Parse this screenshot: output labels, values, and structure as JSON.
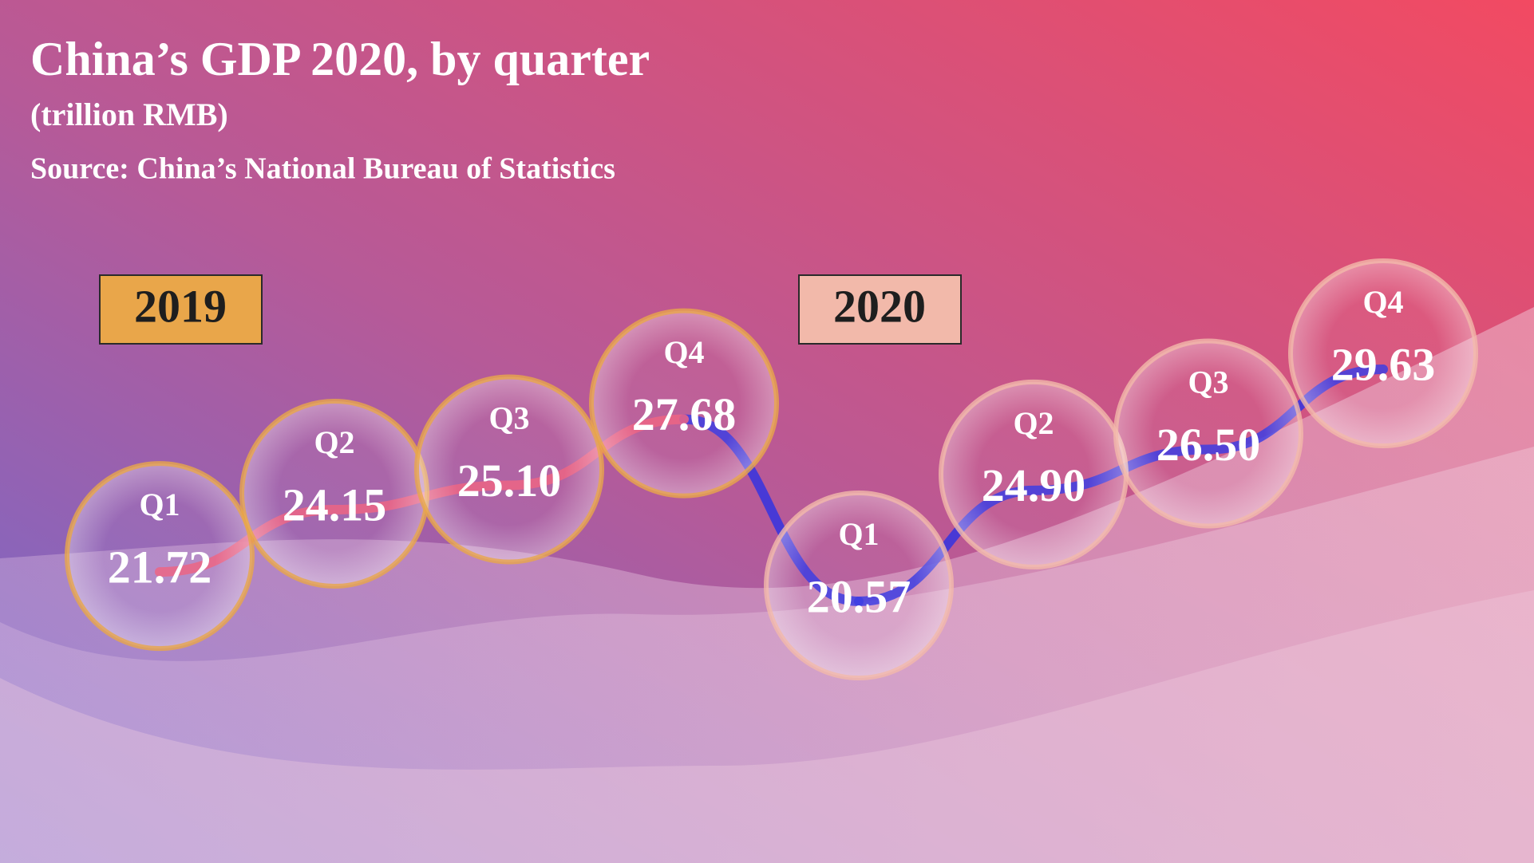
{
  "chart_data": {
    "type": "line",
    "title": "China’s GDP 2020, by quarter",
    "subtitle": "(trillion RMB)",
    "source": "Source: China’s National Bureau of Statistics",
    "series": [
      {
        "name": "2019",
        "color": "#e9a64a",
        "line_color": "#ec5d7e",
        "categories": [
          "Q1",
          "Q2",
          "Q3",
          "Q4"
        ],
        "values": [
          21.72,
          24.15,
          25.1,
          27.68
        ],
        "value_labels": [
          "21.72",
          "24.15",
          "25.10",
          "27.68"
        ]
      },
      {
        "name": "2020",
        "color": "#f2b9aa",
        "line_color": "#3434e0",
        "categories": [
          "Q1",
          "Q2",
          "Q3",
          "Q4"
        ],
        "values": [
          20.57,
          24.9,
          26.5,
          29.63
        ],
        "value_labels": [
          "20.57",
          "24.90",
          "26.50",
          "29.63"
        ]
      }
    ]
  }
}
